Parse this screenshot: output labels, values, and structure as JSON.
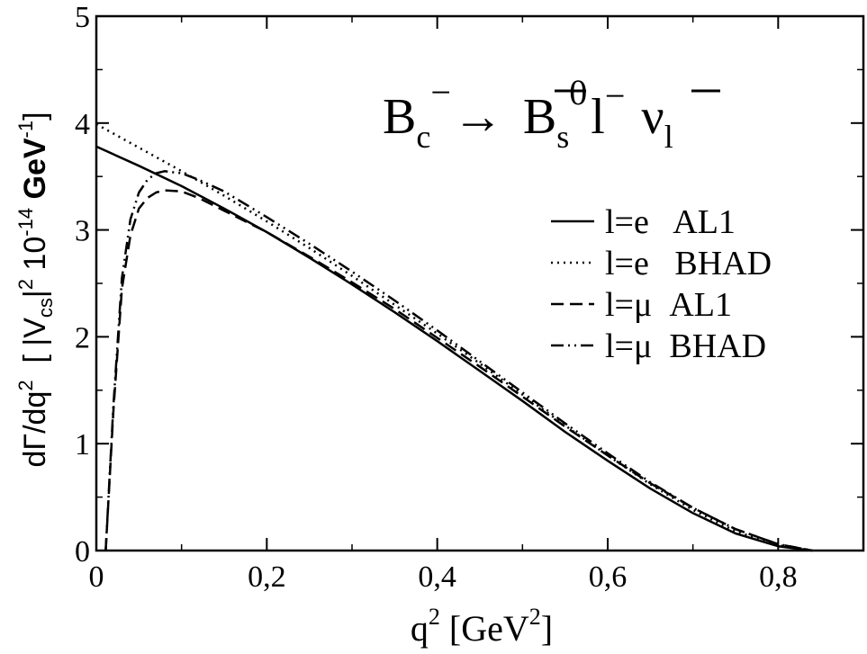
{
  "chart_data": {
    "type": "line",
    "xlabel": {
      "base": "q",
      "sup": "2",
      "unit_open": " [GeV",
      "unit_sup": "2",
      "unit_close": "]"
    },
    "ylabel": {
      "p1": "dΓ/dq",
      "p1_sup": "2",
      "p2": "  [ |V",
      "p2_sub": "cs",
      "p3": "|",
      "p3_sup": "2",
      "p4": " 10",
      "p4_sup": "-14",
      "p5": " GeV",
      "p5_sup": "-1",
      "p6": "]"
    },
    "annotation": {
      "B": "B",
      "B_sub": "c",
      "B_sup": "−",
      "arrow": "→",
      "Bs": "B",
      "Bs_sub": "s",
      "Bs_sup": "0",
      "l": "l",
      "l_sup": "−",
      "nu": "ν",
      "nu_sub": "l"
    },
    "xlim": [
      0,
      0.9
    ],
    "ylim": [
      0,
      5
    ],
    "xticks": [
      {
        "value": 0,
        "label": "0"
      },
      {
        "value": 0.2,
        "label": "0,2"
      },
      {
        "value": 0.4,
        "label": "0,4"
      },
      {
        "value": 0.6,
        "label": "0,6"
      },
      {
        "value": 0.8,
        "label": "0,8"
      }
    ],
    "yticks": [
      {
        "value": 0,
        "label": "0"
      },
      {
        "value": 1,
        "label": "1"
      },
      {
        "value": 2,
        "label": "2"
      },
      {
        "value": 3,
        "label": "3"
      },
      {
        "value": 4,
        "label": "4"
      },
      {
        "value": 5,
        "label": "5"
      }
    ],
    "grid": false,
    "legend_position": "right",
    "series": [
      {
        "name": "l=e   AL1",
        "style": "solid",
        "x": [
          0,
          0.05,
          0.1,
          0.15,
          0.2,
          0.25,
          0.3,
          0.35,
          0.4,
          0.45,
          0.5,
          0.55,
          0.6,
          0.65,
          0.7,
          0.75,
          0.8,
          0.84
        ],
        "y": [
          3.78,
          3.6,
          3.41,
          3.2,
          2.98,
          2.74,
          2.49,
          2.23,
          1.96,
          1.68,
          1.4,
          1.11,
          0.84,
          0.58,
          0.35,
          0.16,
          0.04,
          0
        ]
      },
      {
        "name": "l=e   BHAD",
        "style": "dotted",
        "x": [
          0,
          0.05,
          0.1,
          0.15,
          0.2,
          0.25,
          0.3,
          0.35,
          0.4,
          0.45,
          0.5,
          0.55,
          0.6,
          0.65,
          0.7,
          0.75,
          0.8,
          0.84
        ],
        "y": [
          3.99,
          3.77,
          3.55,
          3.32,
          3.08,
          2.83,
          2.57,
          2.3,
          2.03,
          1.75,
          1.46,
          1.17,
          0.89,
          0.62,
          0.38,
          0.18,
          0.05,
          0
        ]
      },
      {
        "name": "l=μ  AL1",
        "style": "dashed",
        "x": [
          0.011,
          0.02,
          0.03,
          0.04,
          0.05,
          0.06,
          0.07,
          0.08,
          0.1,
          0.12,
          0.15,
          0.2,
          0.25,
          0.3,
          0.35,
          0.4,
          0.45,
          0.5,
          0.55,
          0.6,
          0.65,
          0.7,
          0.75,
          0.8,
          0.84
        ],
        "y": [
          0,
          1.3,
          2.45,
          2.95,
          3.2,
          3.3,
          3.35,
          3.37,
          3.36,
          3.3,
          3.18,
          2.98,
          2.75,
          2.51,
          2.26,
          1.99,
          1.72,
          1.44,
          1.16,
          0.89,
          0.63,
          0.4,
          0.2,
          0.06,
          0
        ]
      },
      {
        "name": "l=μ  BHAD",
        "style": "dashdot",
        "x": [
          0.011,
          0.02,
          0.03,
          0.04,
          0.05,
          0.06,
          0.07,
          0.08,
          0.1,
          0.12,
          0.15,
          0.2,
          0.25,
          0.3,
          0.35,
          0.4,
          0.45,
          0.5,
          0.55,
          0.6,
          0.65,
          0.7,
          0.75,
          0.8,
          0.84
        ],
        "y": [
          0,
          1.35,
          2.55,
          3.1,
          3.35,
          3.47,
          3.53,
          3.55,
          3.53,
          3.47,
          3.36,
          3.12,
          2.87,
          2.61,
          2.34,
          2.06,
          1.77,
          1.48,
          1.19,
          0.91,
          0.64,
          0.4,
          0.2,
          0.06,
          0
        ]
      }
    ]
  }
}
